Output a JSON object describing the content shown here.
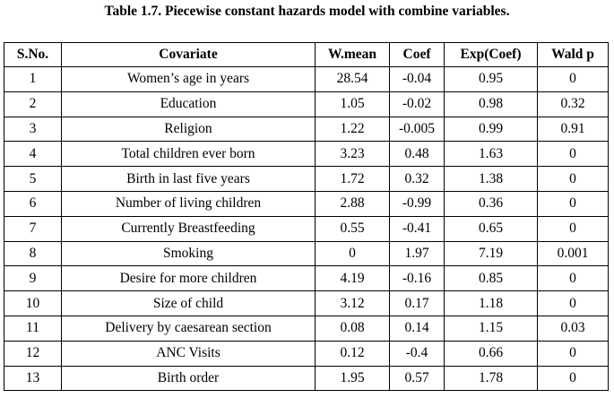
{
  "caption": "Table 1.7. Piecewise constant hazards model with combine variables.",
  "table": {
    "headers": [
      "S.No.",
      "Covariate",
      "W.mean",
      "Coef",
      "Exp(Coef)",
      "Wald p"
    ],
    "rows": [
      [
        "1",
        "Women’s age in years",
        "28.54",
        "-0.04",
        "0.95",
        "0"
      ],
      [
        "2",
        "Education",
        "1.05",
        "-0.02",
        "0.98",
        "0.32"
      ],
      [
        "3",
        "Religion",
        "1.22",
        "-0.005",
        "0.99",
        "0.91"
      ],
      [
        "4",
        "Total children ever born",
        "3.23",
        "0.48",
        "1.63",
        "0"
      ],
      [
        "5",
        "Birth in last five years",
        "1.72",
        "0.32",
        "1.38",
        "0"
      ],
      [
        "6",
        "Number of living children",
        "2.88",
        "-0.99",
        "0.36",
        "0"
      ],
      [
        "7",
        "Currently Breastfeeding",
        "0.55",
        "-0.41",
        "0.65",
        "0"
      ],
      [
        "8",
        "Smoking",
        "0",
        "1.97",
        "7.19",
        "0.001"
      ],
      [
        "9",
        "Desire for more children",
        "4.19",
        "-0.16",
        "0.85",
        "0"
      ],
      [
        "10",
        "Size of child",
        "3.12",
        "0.17",
        "1.18",
        "0"
      ],
      [
        "11",
        "Delivery by caesarean section",
        "0.08",
        "0.14",
        "1.15",
        "0.03"
      ],
      [
        "12",
        "ANC Visits",
        "0.12",
        "-0.4",
        "0.66",
        "0"
      ],
      [
        "13",
        "Birth order",
        "1.95",
        "0.57",
        "1.78",
        "0"
      ]
    ]
  }
}
